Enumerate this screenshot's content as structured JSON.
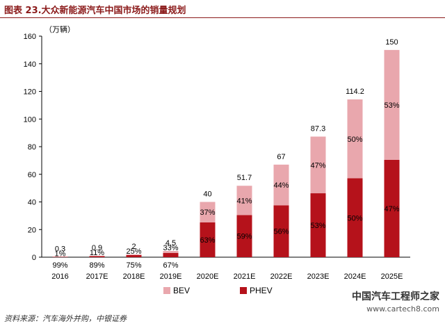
{
  "header": {
    "title": "图表 23.大众新能源汽车中国市场的销量规划"
  },
  "footer": {
    "source": "资料来源：汽车海外并购，中银证券"
  },
  "watermark": {
    "line1": "中国汽车工程师之家",
    "line2": "www.cartech8.com"
  },
  "chart_data": {
    "type": "bar",
    "stacked": true,
    "unit_label": "（万辆）",
    "ylim": [
      0,
      160
    ],
    "yticks": [
      0,
      20,
      40,
      60,
      80,
      100,
      120,
      140,
      160
    ],
    "categories": [
      "2016",
      "2017E",
      "2018E",
      "2019E",
      "2020E",
      "2021E",
      "2022E",
      "2023E",
      "2024E",
      "2025E"
    ],
    "totals": [
      0.3,
      0.9,
      2,
      4.5,
      40,
      51.7,
      67,
      87.3,
      114.2,
      150
    ],
    "total_labels": [
      "0.3",
      "0.9",
      "2",
      "4.5",
      "40",
      "51.7",
      "67",
      "87.3",
      "114.2",
      "150"
    ],
    "series": [
      {
        "name": "PHEV",
        "color": "#b5121b",
        "share": [
          0.99,
          0.89,
          0.75,
          0.67,
          0.63,
          0.59,
          0.56,
          0.53,
          0.5,
          0.47
        ],
        "labels": [
          "99%",
          "89%",
          "75%",
          "67%",
          "63%",
          "59%",
          "56%",
          "53%",
          "50%",
          "47%"
        ]
      },
      {
        "name": "BEV",
        "color": "#e9a7ad",
        "share": [
          0.01,
          0.11,
          0.25,
          0.33,
          0.37,
          0.41,
          0.44,
          0.47,
          0.5,
          0.53
        ],
        "labels": [
          "1%",
          "11%",
          "25%",
          "33%",
          "37%",
          "41%",
          "44%",
          "47%",
          "50%",
          "53%"
        ]
      }
    ],
    "legend": {
      "position": "bottom",
      "order": [
        "BEV",
        "PHEV"
      ]
    },
    "grid": false
  }
}
